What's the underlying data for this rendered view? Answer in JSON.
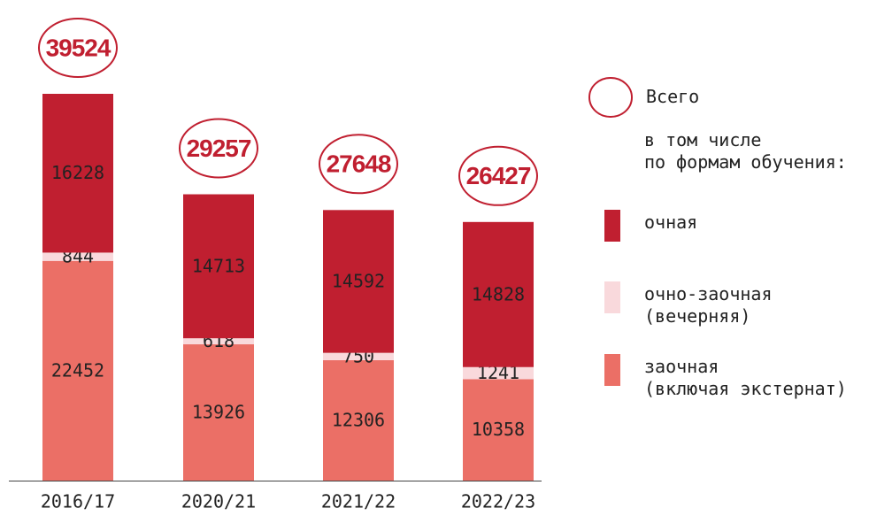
{
  "chart_data": {
    "type": "stacked-bar",
    "categories": [
      "2016/17",
      "2020/21",
      "2021/22",
      "2022/23"
    ],
    "series": [
      {
        "name": "заочная\n(включая экстернат)",
        "color": "#eb6f66",
        "values": [
          22452,
          13926,
          12306,
          10358
        ]
      },
      {
        "name": "очно-заочная\n(вечерняя)",
        "color": "#f9d9dc",
        "values": [
          844,
          618,
          750,
          1241
        ]
      },
      {
        "name": "очная",
        "color": "#c01f30",
        "values": [
          16228,
          14713,
          14592,
          14828
        ]
      }
    ],
    "total_label": "Всего",
    "totals": [
      39524,
      29257,
      27648,
      26427
    ],
    "legend_subtitle": "в том числе\nпо формам обучения:"
  }
}
